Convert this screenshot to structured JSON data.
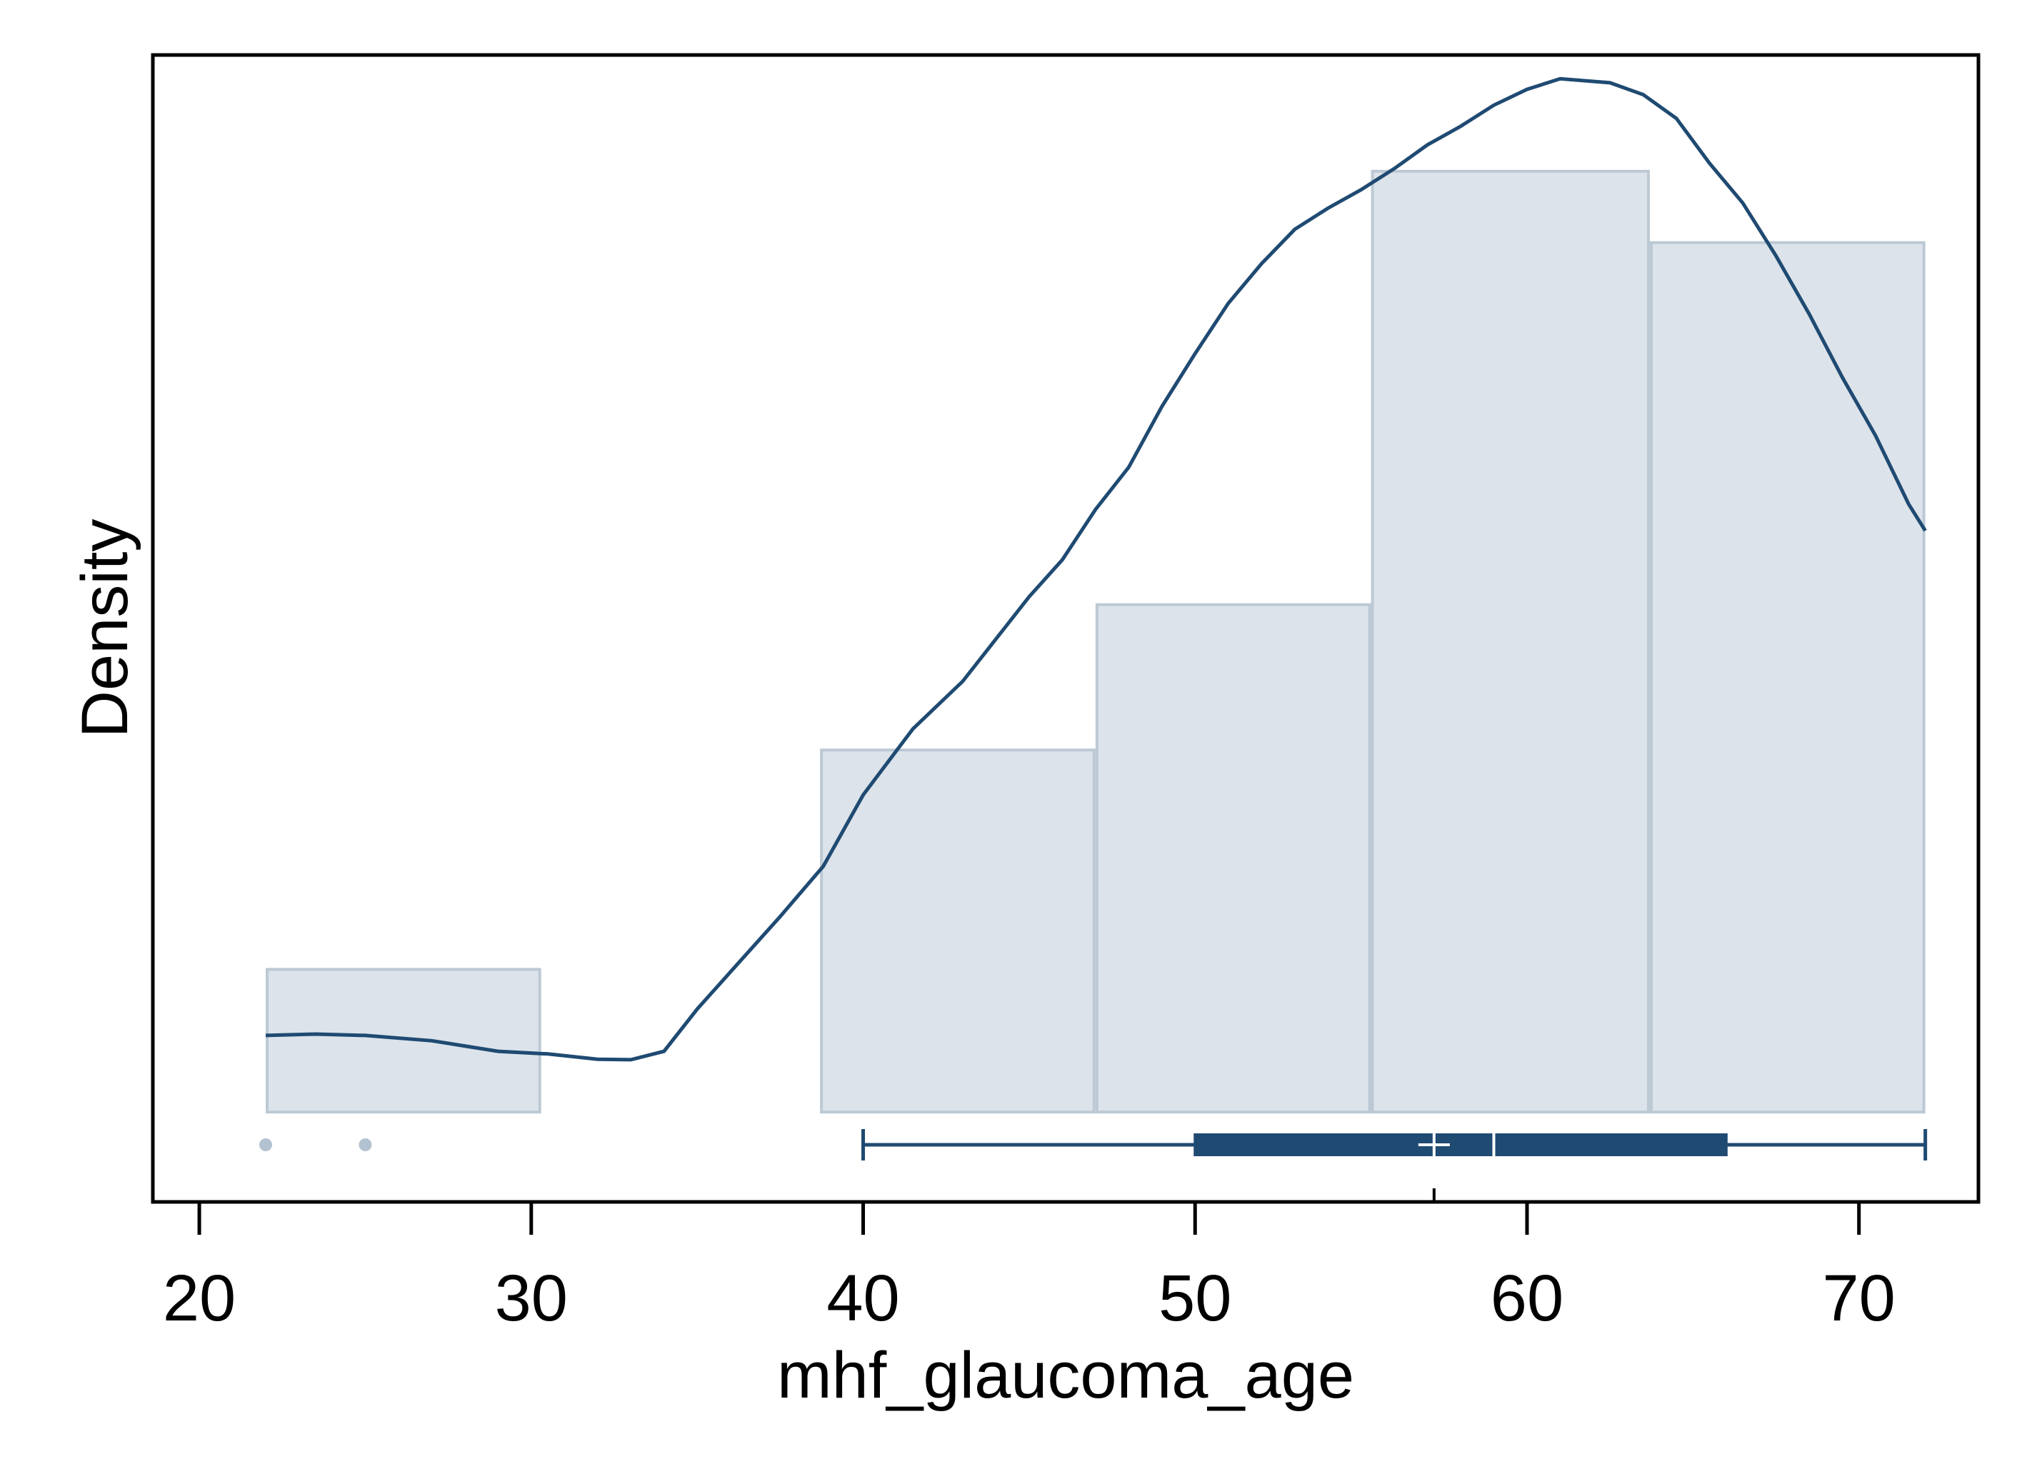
{
  "chart_data": {
    "type": "histogram",
    "title": "",
    "xlabel": "mhf_glaucoma_age",
    "ylabel": "Density",
    "xlim": [
      18.6,
      73.6
    ],
    "ylim": [
      -0.0034,
      0.04
    ],
    "xticks": [
      20,
      30,
      40,
      50,
      60,
      70
    ],
    "xtick_labels": [
      "20",
      "30",
      "40",
      "50",
      "60",
      "70"
    ],
    "grid": false,
    "legend": "none",
    "histogram": {
      "bins": [
        {
          "start": 22.0,
          "end": 30.3,
          "density": 0.0054
        },
        {
          "start": 30.3,
          "end": 38.7,
          "density": 0.0
        },
        {
          "start": 38.7,
          "end": 47.0,
          "density": 0.0137
        },
        {
          "start": 47.0,
          "end": 55.3,
          "density": 0.0192
        },
        {
          "start": 55.3,
          "end": 63.7,
          "density": 0.0356
        },
        {
          "start": 63.7,
          "end": 72.0,
          "density": 0.0329
        }
      ],
      "fill_color": "#dce3ea",
      "edge_color": "#bcc9d4"
    },
    "kde": {
      "color": "#1f4a72",
      "x": [
        22.0,
        23.5,
        25.0,
        27.0,
        29.0,
        30.5,
        32.0,
        33.0,
        34.0,
        35.0,
        36.0,
        37.5,
        38.8,
        40.0,
        41.5,
        43.0,
        44.0,
        45.0,
        46.0,
        47.0,
        48.0,
        49.0,
        50.0,
        51.0,
        52.0,
        53.0,
        54.0,
        55.0,
        56.0,
        57.0,
        58.0,
        59.0,
        60.0,
        61.0,
        62.0,
        62.5,
        63.5,
        64.5,
        65.5,
        66.5,
        67.5,
        68.5,
        69.5,
        70.5,
        71.5,
        72.0
      ],
      "y": [
        0.0029,
        0.00295,
        0.0029,
        0.0027,
        0.0023,
        0.0022,
        0.002,
        0.00198,
        0.0023,
        0.0039,
        0.0053,
        0.0074,
        0.0093,
        0.012,
        0.0145,
        0.0163,
        0.0179,
        0.0195,
        0.0209,
        0.0228,
        0.0244,
        0.0267,
        0.0287,
        0.0306,
        0.0321,
        0.0334,
        0.0342,
        0.0349,
        0.0357,
        0.0366,
        0.0373,
        0.0381,
        0.0387,
        0.0391,
        0.039,
        0.03895,
        0.0385,
        0.0376,
        0.0359,
        0.0344,
        0.0324,
        0.0302,
        0.0278,
        0.0256,
        0.023,
        0.022
      ]
    },
    "boxplot": {
      "min": 40,
      "q1": 50,
      "median": 59,
      "mean": 57.2,
      "q3": 66,
      "max": 72,
      "outliers": [
        22,
        25
      ],
      "color": "#1f4a72",
      "outlier_color": "#b3c2d0"
    }
  }
}
